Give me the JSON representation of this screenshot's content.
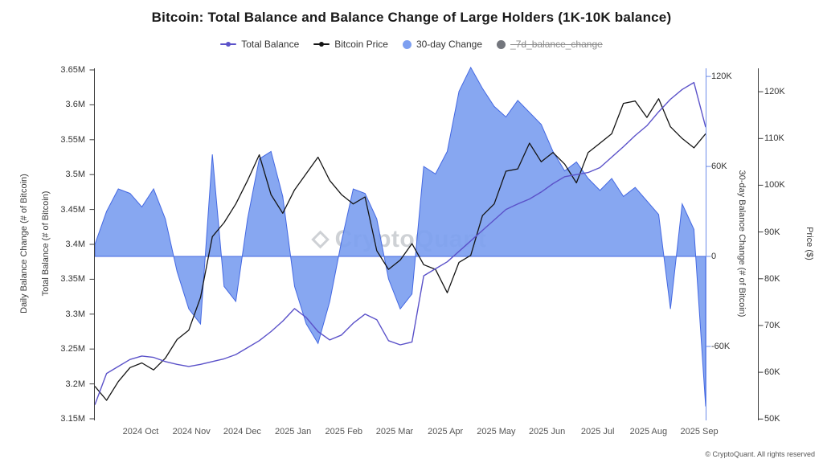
{
  "title": "Bitcoin: Total Balance and Balance Change of Large Holders (1K-10K balance)",
  "watermark": "CryptoQuant",
  "footer": "© CryptoQuant. All rights reserved",
  "legend": [
    {
      "label": "Total Balance",
      "type": "line",
      "color": "#5b52c9",
      "disabled": false
    },
    {
      "label": "Bitcoin Price",
      "type": "line",
      "color": "#141414",
      "disabled": false
    },
    {
      "label": "30-day Change",
      "type": "area",
      "color": "#7d9ff0",
      "disabled": false
    },
    {
      "label": "_7d_balance_change",
      "type": "area",
      "color": "#73767d",
      "disabled": true
    }
  ],
  "chart_data": {
    "type": "line+area",
    "x_span": "Sep 2024 to Sep 2025, weekly samples",
    "axes": {
      "left_outer_label": "Daily Balance Change (# of Bitcoin)",
      "left_inner_label": "Total Balance (# of Bitcoin)",
      "right1_label": "30-day Balance Change (# of Bitcoin)",
      "right2_label": "Price ($)",
      "balance": {
        "min": 3.1477,
        "max": 3.6523,
        "axis_color": "#3d3d3d",
        "ticks": [
          {
            "value": 3.15,
            "label": "3.15M"
          },
          {
            "value": 3.2,
            "label": "3.2M"
          },
          {
            "value": 3.25,
            "label": "3.25M"
          },
          {
            "value": 3.3,
            "label": "3.3M"
          },
          {
            "value": 3.35,
            "label": "3.35M"
          },
          {
            "value": 3.4,
            "label": "3.4M"
          },
          {
            "value": 3.45,
            "label": "3.45M"
          },
          {
            "value": 3.5,
            "label": "3.5M"
          },
          {
            "value": 3.55,
            "label": "3.55M"
          },
          {
            "value": 3.6,
            "label": "3.6M"
          },
          {
            "value": 3.65,
            "label": "3.65M"
          }
        ]
      },
      "change": {
        "min": -109.3,
        "max": 125.4,
        "axis_color": "#6d8ce8",
        "ticks": [
          {
            "value": -60,
            "label": "-60K"
          },
          {
            "value": 0,
            "label": "0"
          },
          {
            "value": 60,
            "label": "60K"
          },
          {
            "value": 120,
            "label": "120K"
          }
        ]
      },
      "price": {
        "min": 49.7,
        "max": 125.0,
        "axis_color": "#3d3d3d",
        "ticks": [
          {
            "value": 50,
            "label": "50K"
          },
          {
            "value": 60,
            "label": "60K"
          },
          {
            "value": 70,
            "label": "70K"
          },
          {
            "value": 80,
            "label": "80K"
          },
          {
            "value": 90,
            "label": "90K"
          },
          {
            "value": 100,
            "label": "100K"
          },
          {
            "value": 110,
            "label": "110K"
          },
          {
            "value": 120,
            "label": "120K"
          }
        ]
      },
      "x_ticks": [
        "2024 Oct",
        "2024 Nov",
        "2024 Dec",
        "2025 Jan",
        "2025 Feb",
        "2025 Mar",
        "2025 Apr",
        "2025 May",
        "2025 Jun",
        "2025 Jul",
        "2025 Aug",
        "2025 Sep"
      ]
    },
    "series": [
      {
        "name": "Total Balance",
        "type": "line",
        "axis": "balance",
        "color": "#5b52c9",
        "unit": "million BTC",
        "values": [
          3.17,
          3.215,
          3.225,
          3.235,
          3.24,
          3.238,
          3.232,
          3.228,
          3.225,
          3.228,
          3.232,
          3.236,
          3.242,
          3.252,
          3.262,
          3.275,
          3.29,
          3.308,
          3.295,
          3.275,
          3.263,
          3.27,
          3.287,
          3.3,
          3.292,
          3.262,
          3.256,
          3.26,
          3.355,
          3.365,
          3.375,
          3.39,
          3.405,
          3.42,
          3.435,
          3.45,
          3.458,
          3.465,
          3.475,
          3.487,
          3.497,
          3.5,
          3.503,
          3.51,
          3.525,
          3.54,
          3.556,
          3.57,
          3.59,
          3.608,
          3.622,
          3.632,
          3.568
        ]
      },
      {
        "name": "Bitcoin Price",
        "type": "line",
        "axis": "price",
        "color": "#141414",
        "unit": "thousand USD",
        "values": [
          57,
          54,
          58,
          61,
          62,
          60.5,
          63,
          67,
          69,
          76,
          89,
          92,
          96,
          101,
          106.5,
          98,
          94,
          99,
          102.5,
          106,
          101,
          98,
          96,
          97.5,
          86,
          82,
          84,
          87.5,
          83,
          82,
          77,
          83.5,
          85,
          93.5,
          96,
          103,
          103.5,
          109,
          105,
          107,
          104.5,
          100.5,
          107,
          109,
          111,
          117.5,
          118,
          114.5,
          118.5,
          112.5,
          110,
          108,
          111
        ]
      },
      {
        "name": "30-day Change",
        "type": "area",
        "axis": "change",
        "color": "#7d9ff0",
        "edge_color": "#4468e2",
        "baseline": 0,
        "unit": "thousand BTC",
        "values": [
          8,
          30,
          45,
          42,
          33,
          45,
          25,
          -10,
          -35,
          -45,
          68,
          -20,
          -30,
          25,
          65,
          70,
          40,
          -20,
          -45,
          -58,
          -30,
          10,
          45,
          42,
          25,
          -15,
          -35,
          -25,
          60,
          55,
          70,
          110,
          126,
          112,
          100,
          93,
          104,
          96,
          88,
          70,
          57,
          63,
          52,
          44,
          52,
          40,
          46,
          37,
          28,
          -35,
          35,
          18,
          -100
        ]
      }
    ]
  }
}
